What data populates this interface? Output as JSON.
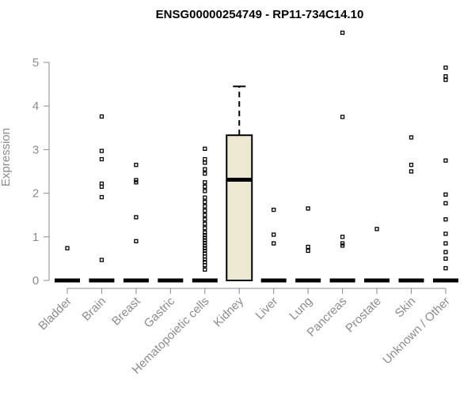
{
  "chart_data": {
    "type": "box",
    "title": "ENSG00000254749 - RP11-734C14.10",
    "xlabel": "",
    "ylabel": "Expression",
    "ylim": [
      0,
      5.6
    ],
    "yticks": [
      0,
      1,
      2,
      3,
      4,
      5
    ],
    "grid": false,
    "legend": "none",
    "categories": [
      "Bladder",
      "Brain",
      "Breast",
      "Gastric",
      "Hematopoietic cells",
      "Kidney",
      "Liver",
      "Lung",
      "Pancreas",
      "Prostate",
      "Skin",
      "Unknown / Other"
    ],
    "boxes": [
      {
        "category": "Bladder",
        "q1": 0,
        "median": 0,
        "q3": 0,
        "whisker_low": 0,
        "whisker_high": 0,
        "outliers": [
          0.74
        ]
      },
      {
        "category": "Brain",
        "q1": 0,
        "median": 0,
        "q3": 0,
        "whisker_low": 0,
        "whisker_high": 0,
        "outliers": [
          0.47,
          1.91,
          2.15,
          2.22,
          2.78,
          2.97,
          3.76
        ]
      },
      {
        "category": "Breast",
        "q1": 0,
        "median": 0,
        "q3": 0,
        "whisker_low": 0,
        "whisker_high": 0,
        "outliers": [
          0.9,
          1.45,
          2.25,
          2.3,
          2.65
        ]
      },
      {
        "category": "Gastric",
        "q1": 0,
        "median": 0,
        "q3": 0,
        "whisker_low": 0,
        "whisker_high": 0,
        "outliers": []
      },
      {
        "category": "Hematopoietic cells",
        "q1": 0,
        "median": 0,
        "q3": 0,
        "whisker_low": 0,
        "whisker_high": 0,
        "outliers": [
          0.25,
          0.35,
          0.42,
          0.48,
          0.55,
          0.62,
          0.68,
          0.74,
          0.8,
          0.86,
          0.92,
          0.98,
          1.04,
          1.1,
          1.2,
          1.3,
          1.4,
          1.5,
          1.6,
          1.7,
          1.8,
          1.9,
          2.05,
          2.15,
          2.25,
          2.45,
          2.55,
          2.7,
          2.78,
          3.02
        ]
      },
      {
        "category": "Kidney",
        "q1": 0,
        "median": 2.31,
        "q3": 3.33,
        "whisker_low": 0,
        "whisker_high": 4.45,
        "outliers": []
      },
      {
        "category": "Liver",
        "q1": 0,
        "median": 0,
        "q3": 0,
        "whisker_low": 0,
        "whisker_high": 0,
        "outliers": [
          0.85,
          1.05,
          1.62
        ]
      },
      {
        "category": "Lung",
        "q1": 0,
        "median": 0,
        "q3": 0,
        "whisker_low": 0,
        "whisker_high": 0,
        "outliers": [
          0.68,
          0.77,
          1.65
        ]
      },
      {
        "category": "Pancreas",
        "q1": 0,
        "median": 0,
        "q3": 0,
        "whisker_low": 0,
        "whisker_high": 0,
        "outliers": [
          0.8,
          0.85,
          1.0,
          3.75,
          5.68
        ]
      },
      {
        "category": "Prostate",
        "q1": 0,
        "median": 0,
        "q3": 0,
        "whisker_low": 0,
        "whisker_high": 0,
        "outliers": [
          1.18
        ]
      },
      {
        "category": "Skin",
        "q1": 0,
        "median": 0,
        "q3": 0,
        "whisker_low": 0,
        "whisker_high": 0,
        "outliers": [
          2.5,
          2.65,
          3.28
        ]
      },
      {
        "category": "Unknown / Other",
        "q1": 0,
        "median": 0,
        "q3": 0,
        "whisker_low": 0,
        "whisker_high": 0,
        "outliers": [
          0.28,
          0.5,
          0.65,
          0.85,
          1.07,
          1.4,
          1.77,
          1.97,
          2.75,
          4.6,
          4.68,
          4.88
        ]
      }
    ],
    "colors": {
      "box_fill": "#ede8d0",
      "box_stroke": "#000000",
      "axis_text": "#8c8c8c",
      "axis_line": "#8c8c8c",
      "title": "#000000"
    }
  }
}
